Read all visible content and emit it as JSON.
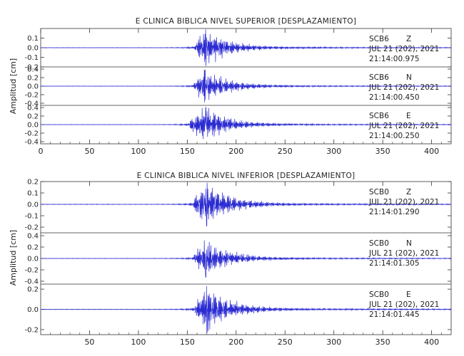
{
  "chart_data": [
    {
      "type": "line",
      "title": "E CLINICA BIBLICA NIVEL SUPERIOR [DESPLAZAMIENTO]",
      "ylabel": "Amplitud [cm]",
      "xlim": [
        0,
        420
      ],
      "xticks": [
        0,
        50,
        100,
        150,
        200,
        250,
        300,
        350,
        400
      ],
      "xtick_labels": [
        "0",
        "50",
        "100",
        "150",
        "200",
        "250",
        "300",
        "350",
        "400"
      ],
      "grid": false,
      "line_color": "#2a2ad2",
      "traces": [
        {
          "station": "SCB6",
          "component": "Z",
          "date": "JUL 21 (202), 2021",
          "time": "21:14:00.975",
          "ylim": [
            -0.2,
            0.2
          ],
          "yticks": [
            0.1,
            0.0,
            -0.1,
            -0.2
          ],
          "ytick_labels": [
            "0.1",
            "0.0",
            "-0.1",
            "-0.2"
          ],
          "onset": 158,
          "peak": 169,
          "peak_amp": 0.19,
          "seed": 11
        },
        {
          "station": "SCB6",
          "component": "N",
          "date": "JUL 21 (202), 2021",
          "time": "21:14:00.450",
          "ylim": [
            -0.45,
            0.45
          ],
          "yticks": [
            0.4,
            0.2,
            0.0,
            -0.2,
            -0.4
          ],
          "ytick_labels": [
            "0.4",
            "0.2",
            "0.0",
            "-0.2",
            "-0.4"
          ],
          "onset": 157,
          "peak": 168,
          "peak_amp": 0.38,
          "seed": 23
        },
        {
          "station": "SCB6",
          "component": "E",
          "date": "JUL 21 (202), 2021",
          "time": "21:14:00.250",
          "ylim": [
            -0.45,
            0.45
          ],
          "yticks": [
            0.4,
            0.2,
            0.0,
            -0.2,
            -0.4
          ],
          "ytick_labels": [
            "0.4",
            "0.2",
            "0.0",
            "-0.2",
            "-0.4"
          ],
          "onset": 152,
          "peak": 169,
          "peak_amp": 0.4,
          "seed": 37
        }
      ]
    },
    {
      "type": "line",
      "title": "E CLINICA BIBLICA NIVEL INFERIOR [DESPLAZAMIENTO]",
      "ylabel": "Amplitud [cm]",
      "xlim": [
        0,
        420
      ],
      "xticks": [
        50,
        100,
        150,
        200,
        250,
        300,
        350,
        400
      ],
      "xtick_labels": [
        "50",
        "100",
        "150",
        "200",
        "250",
        "300",
        "350",
        "400"
      ],
      "grid": false,
      "line_color": "#2a2ad2",
      "traces": [
        {
          "station": "SCB0",
          "component": "Z",
          "date": "JUL 21 (202), 2021",
          "time": "21:14:01.290",
          "ylim": [
            -0.25,
            0.2
          ],
          "yticks": [
            0.2,
            0.1,
            0.0,
            -0.1,
            -0.2
          ],
          "ytick_labels": [
            "0.2",
            "0.1",
            "0.0",
            "-0.1",
            "-0.2"
          ],
          "onset": 156,
          "peak": 170,
          "peak_amp": 0.19,
          "seed": 51
        },
        {
          "station": "SCB0",
          "component": "N",
          "date": "JUL 21 (202), 2021",
          "time": "21:14:01.305",
          "ylim": [
            -0.45,
            0.45
          ],
          "yticks": [
            0.4,
            0.2,
            0.0,
            -0.2,
            -0.4
          ],
          "ytick_labels": [
            "0.4",
            "0.2",
            "0.0",
            "-0.2",
            "-0.4"
          ],
          "onset": 157,
          "peak": 169,
          "peak_amp": 0.33,
          "seed": 67
        },
        {
          "station": "SCB0",
          "component": "E",
          "date": "JUL 21 (202), 2021",
          "time": "21:14:01.445",
          "ylim": [
            -0.25,
            0.25
          ],
          "yticks": [
            0.2,
            0.0,
            -0.2
          ],
          "ytick_labels": [
            "0.2",
            "0.0",
            "-0.2"
          ],
          "onset": 158,
          "peak": 170,
          "peak_amp": 0.23,
          "seed": 79
        }
      ]
    }
  ]
}
